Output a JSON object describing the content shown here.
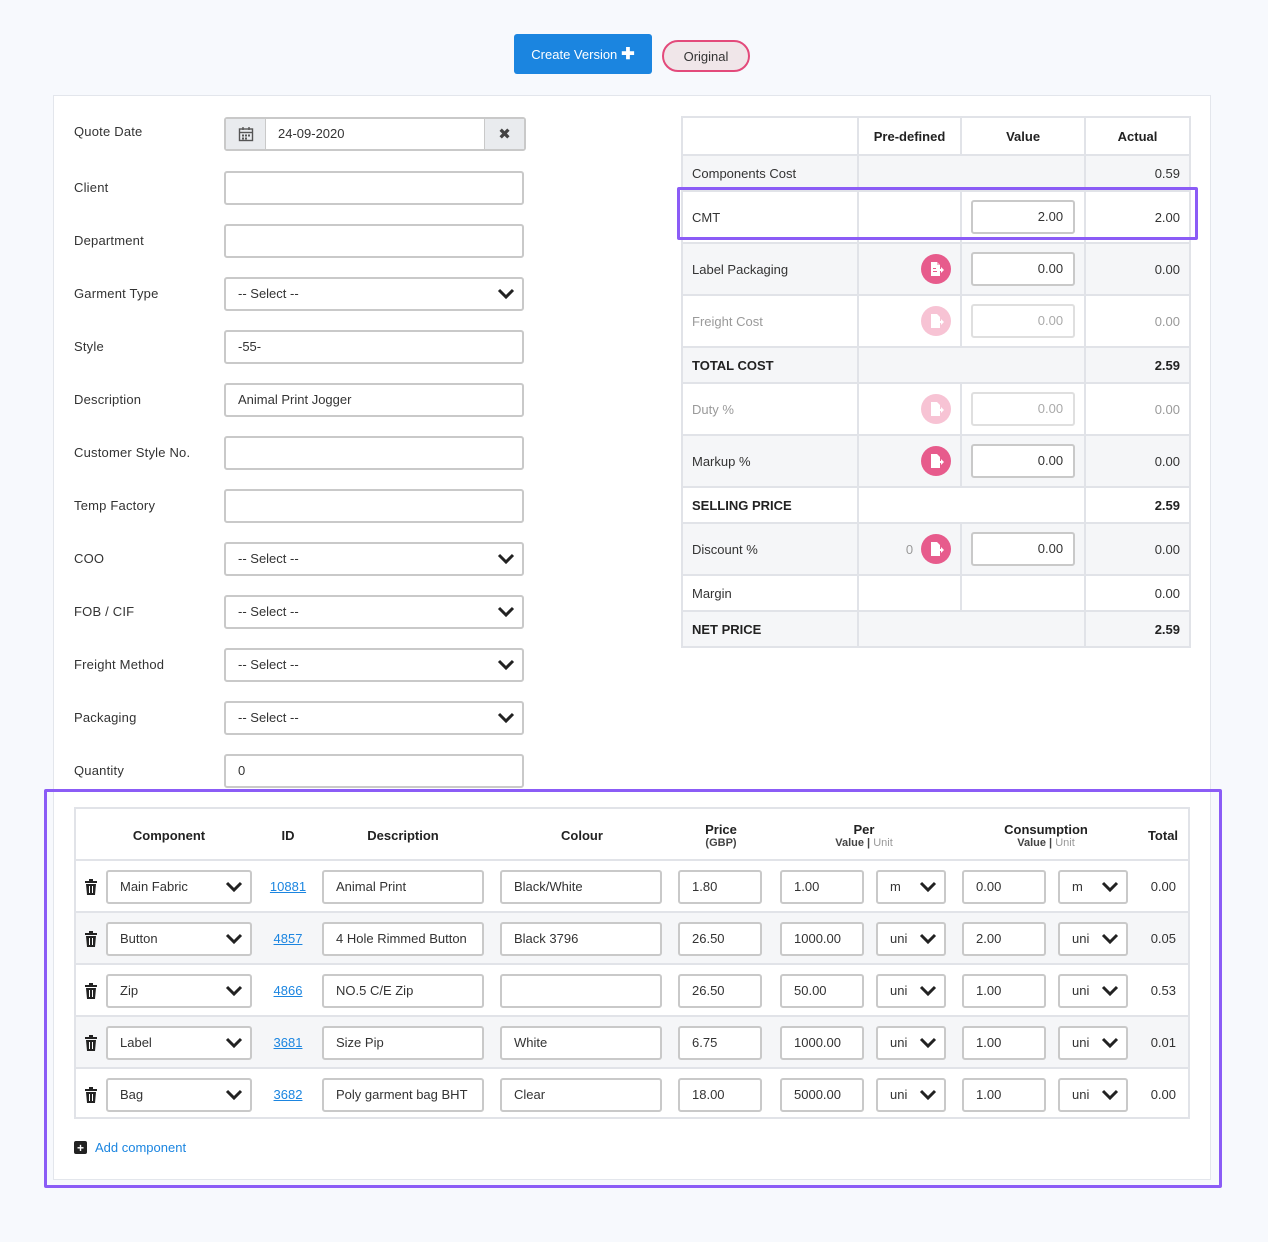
{
  "toolbar": {
    "create_version": "Create Version",
    "original": "Original"
  },
  "form": {
    "quote_date": {
      "label": "Quote Date",
      "value": "24-09-2020"
    },
    "client": {
      "label": "Client",
      "value": ""
    },
    "department": {
      "label": "Department",
      "value": ""
    },
    "garment_type": {
      "label": "Garment Type",
      "value": "-- Select --"
    },
    "style": {
      "label": "Style",
      "value": "-55-"
    },
    "description": {
      "label": "Description",
      "value": "Animal Print Jogger"
    },
    "customer_style_no": {
      "label": "Customer Style No.",
      "value": ""
    },
    "temp_factory": {
      "label": "Temp Factory",
      "value": ""
    },
    "coo": {
      "label": "COO",
      "value": "-- Select --"
    },
    "fob_cif": {
      "label": "FOB / CIF",
      "value": "-- Select --"
    },
    "freight_method": {
      "label": "Freight Method",
      "value": "-- Select --"
    },
    "packaging": {
      "label": "Packaging",
      "value": "-- Select --"
    },
    "quantity": {
      "label": "Quantity",
      "value": "0"
    }
  },
  "cost": {
    "headers": {
      "predefined": "Pre-defined",
      "value": "Value",
      "actual": "Actual"
    },
    "components_cost": {
      "label": "Components Cost",
      "actual": "0.59"
    },
    "cmt": {
      "label": "CMT",
      "value": "2.00",
      "actual": "2.00"
    },
    "label_packaging": {
      "label": "Label Packaging",
      "value": "0.00",
      "actual": "0.00"
    },
    "freight_cost": {
      "label": "Freight Cost",
      "value": "0.00",
      "actual": "0.00"
    },
    "total_cost": {
      "label": "TOTAL COST",
      "actual": "2.59"
    },
    "duty": {
      "label": "Duty %",
      "value": "0.00",
      "actual": "0.00"
    },
    "markup": {
      "label": "Markup %",
      "value": "0.00",
      "actual": "0.00"
    },
    "selling_price": {
      "label": "SELLING PRICE",
      "actual": "2.59"
    },
    "discount": {
      "label": "Discount %",
      "predefined": "0",
      "value": "0.00",
      "actual": "0.00"
    },
    "margin": {
      "label": "Margin",
      "actual": "0.00"
    },
    "net_price": {
      "label": "NET PRICE",
      "actual": "2.59"
    }
  },
  "components": {
    "headers": {
      "component": "Component",
      "id": "ID",
      "description": "Description",
      "colour": "Colour",
      "price": "Price",
      "price_sub": "(GBP)",
      "per": "Per",
      "consumption": "Consumption",
      "value": "Value",
      "sep": "|",
      "unit": "Unit",
      "total": "Total"
    },
    "rows": [
      {
        "component": "Main Fabric",
        "id": "10881",
        "description": "Animal Print",
        "colour": "Black/White",
        "price": "1.80",
        "per_value": "1.00",
        "per_unit": "m",
        "cons_value": "0.00",
        "cons_unit": "m",
        "total": "0.00"
      },
      {
        "component": "Button",
        "id": "4857",
        "description": "4 Hole Rimmed Button",
        "colour": "Black 3796",
        "price": "26.50",
        "per_value": "1000.00",
        "per_unit": "uni",
        "cons_value": "2.00",
        "cons_unit": "uni",
        "total": "0.05"
      },
      {
        "component": "Zip",
        "id": "4866",
        "description": "NO.5 C/E Zip",
        "colour": "",
        "price": "26.50",
        "per_value": "50.00",
        "per_unit": "uni",
        "cons_value": "1.00",
        "cons_unit": "uni",
        "total": "0.53"
      },
      {
        "component": "Label",
        "id": "3681",
        "description": "Size Pip",
        "colour": "White",
        "price": "6.75",
        "per_value": "1000.00",
        "per_unit": "uni",
        "cons_value": "1.00",
        "cons_unit": "uni",
        "total": "0.01"
      },
      {
        "component": "Bag",
        "id": "3682",
        "description": "Poly garment bag BHT",
        "colour": "Clear",
        "price": "18.00",
        "per_value": "5000.00",
        "per_unit": "uni",
        "cons_value": "1.00",
        "cons_unit": "uni",
        "total": "0.00"
      }
    ],
    "add_label": "Add component"
  },
  "colors": {
    "primary": "#1b85e0",
    "pink": "#e75b8c",
    "highlight": "#8b5cf6"
  },
  "icons": [
    "calendar-icon",
    "clear-icon",
    "chevron-down-icon",
    "document-icon",
    "trash-icon",
    "plus-square-icon"
  ]
}
